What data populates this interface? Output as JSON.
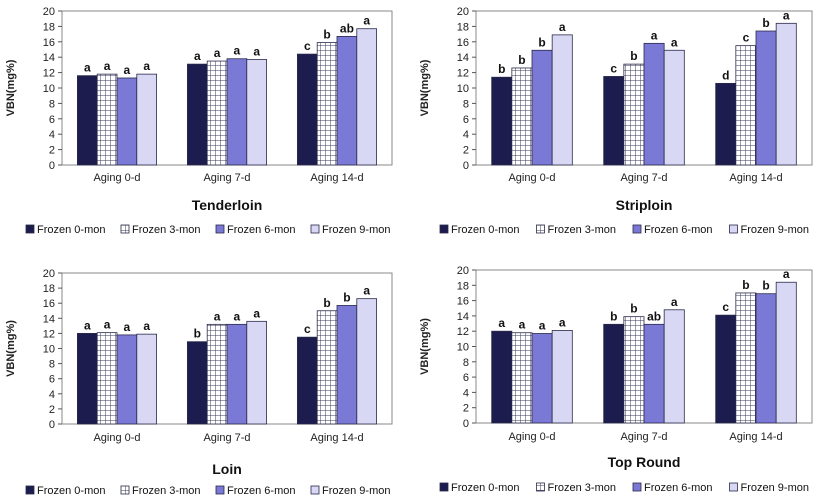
{
  "chart_data": [
    {
      "type": "bar",
      "title": "Tenderloin",
      "ylabel": "VBN(mg%)",
      "ylim": [
        0,
        20
      ],
      "yticks": [
        0,
        2,
        4,
        6,
        8,
        10,
        12,
        14,
        16,
        18,
        20
      ],
      "categories": [
        "Aging  0-d",
        "Aging  7-d",
        "Aging  14-d"
      ],
      "series": [
        {
          "name": "Frozen  0-mon",
          "values": [
            11.6,
            13.1,
            14.4
          ],
          "labels": [
            "a",
            "a",
            "c"
          ]
        },
        {
          "name": "Frozen  3-mon",
          "values": [
            11.8,
            13.5,
            15.9
          ],
          "labels": [
            "a",
            "a",
            "b"
          ]
        },
        {
          "name": "Frozen  6-mon",
          "values": [
            11.3,
            13.8,
            16.7
          ],
          "labels": [
            "a",
            "a",
            "ab"
          ]
        },
        {
          "name": "Frozen  9-mon",
          "values": [
            11.8,
            13.7,
            17.7
          ],
          "labels": [
            "a",
            "a",
            "a"
          ]
        }
      ],
      "legend_position": "bottom"
    },
    {
      "type": "bar",
      "title": "Striploin",
      "ylabel": "VBN(mg%)",
      "ylim": [
        0,
        20
      ],
      "yticks": [
        0,
        2,
        4,
        6,
        8,
        10,
        12,
        14,
        16,
        18,
        20
      ],
      "categories": [
        "Aging  0-d",
        "Aging  7-d",
        "Aging  14-d"
      ],
      "series": [
        {
          "name": "Frozen  0-mon",
          "values": [
            11.4,
            11.5,
            10.6
          ],
          "labels": [
            "b",
            "c",
            "d"
          ]
        },
        {
          "name": "Frozen  3-mon",
          "values": [
            12.6,
            13.1,
            15.5
          ],
          "labels": [
            "b",
            "b",
            "c"
          ]
        },
        {
          "name": "Frozen  6-mon",
          "values": [
            14.9,
            15.8,
            17.4
          ],
          "labels": [
            "b",
            "a",
            "b"
          ]
        },
        {
          "name": "Frozen  9-mon",
          "values": [
            16.9,
            14.9,
            18.4
          ],
          "labels": [
            "a",
            "a",
            "a"
          ]
        }
      ],
      "legend_position": "bottom"
    },
    {
      "type": "bar",
      "title": "Loin",
      "ylabel": "VBN(mg%)",
      "ylim": [
        0,
        20
      ],
      "yticks": [
        0,
        2,
        4,
        6,
        8,
        10,
        12,
        14,
        16,
        18,
        20
      ],
      "categories": [
        "Aging  0-d",
        "Aging  7-d",
        "Aging  14-d"
      ],
      "series": [
        {
          "name": "Frozen  0-mon",
          "values": [
            12.0,
            10.9,
            11.5
          ],
          "labels": [
            "a",
            "b",
            "c"
          ]
        },
        {
          "name": "Frozen  3-mon",
          "values": [
            12.1,
            13.2,
            15.0
          ],
          "labels": [
            "a",
            "a",
            "b"
          ]
        },
        {
          "name": "Frozen  6-mon",
          "values": [
            11.8,
            13.2,
            15.7
          ],
          "labels": [
            "a",
            "a",
            "b"
          ]
        },
        {
          "name": "Frozen  9-mon",
          "values": [
            11.9,
            13.6,
            16.6
          ],
          "labels": [
            "a",
            "a",
            "a"
          ]
        }
      ],
      "legend_position": "bottom"
    },
    {
      "type": "bar",
      "title": "Top Round",
      "ylabel": "VBN(mg%)",
      "ylim": [
        0,
        20
      ],
      "yticks": [
        0,
        2,
        4,
        6,
        8,
        10,
        12,
        14,
        16,
        18,
        20
      ],
      "categories": [
        "Aging  0-d",
        "Aging  7-d",
        "Aging  14-d"
      ],
      "series": [
        {
          "name": "Frozen  0-mon",
          "values": [
            12.0,
            12.9,
            14.1
          ],
          "labels": [
            "a",
            "b",
            "c"
          ]
        },
        {
          "name": "Frozen  3-mon",
          "values": [
            11.8,
            13.9,
            17.0
          ],
          "labels": [
            "a",
            "b",
            "b"
          ]
        },
        {
          "name": "Frozen  6-mon",
          "values": [
            11.7,
            12.9,
            16.9
          ],
          "labels": [
            "a",
            "ab",
            "b"
          ]
        },
        {
          "name": "Frozen  9-mon",
          "values": [
            12.1,
            14.8,
            18.4
          ],
          "labels": [
            "a",
            "a",
            "a"
          ]
        }
      ],
      "legend_position": "bottom"
    }
  ],
  "colors": {
    "frozen_0_mon": "#1c1c4e",
    "frozen_3_mon": "#ffffff",
    "frozen_3_mon_grid": "#3a3a5a",
    "frozen_6_mon": "#7b79d6",
    "frozen_9_mon": "#d8d8f4"
  }
}
